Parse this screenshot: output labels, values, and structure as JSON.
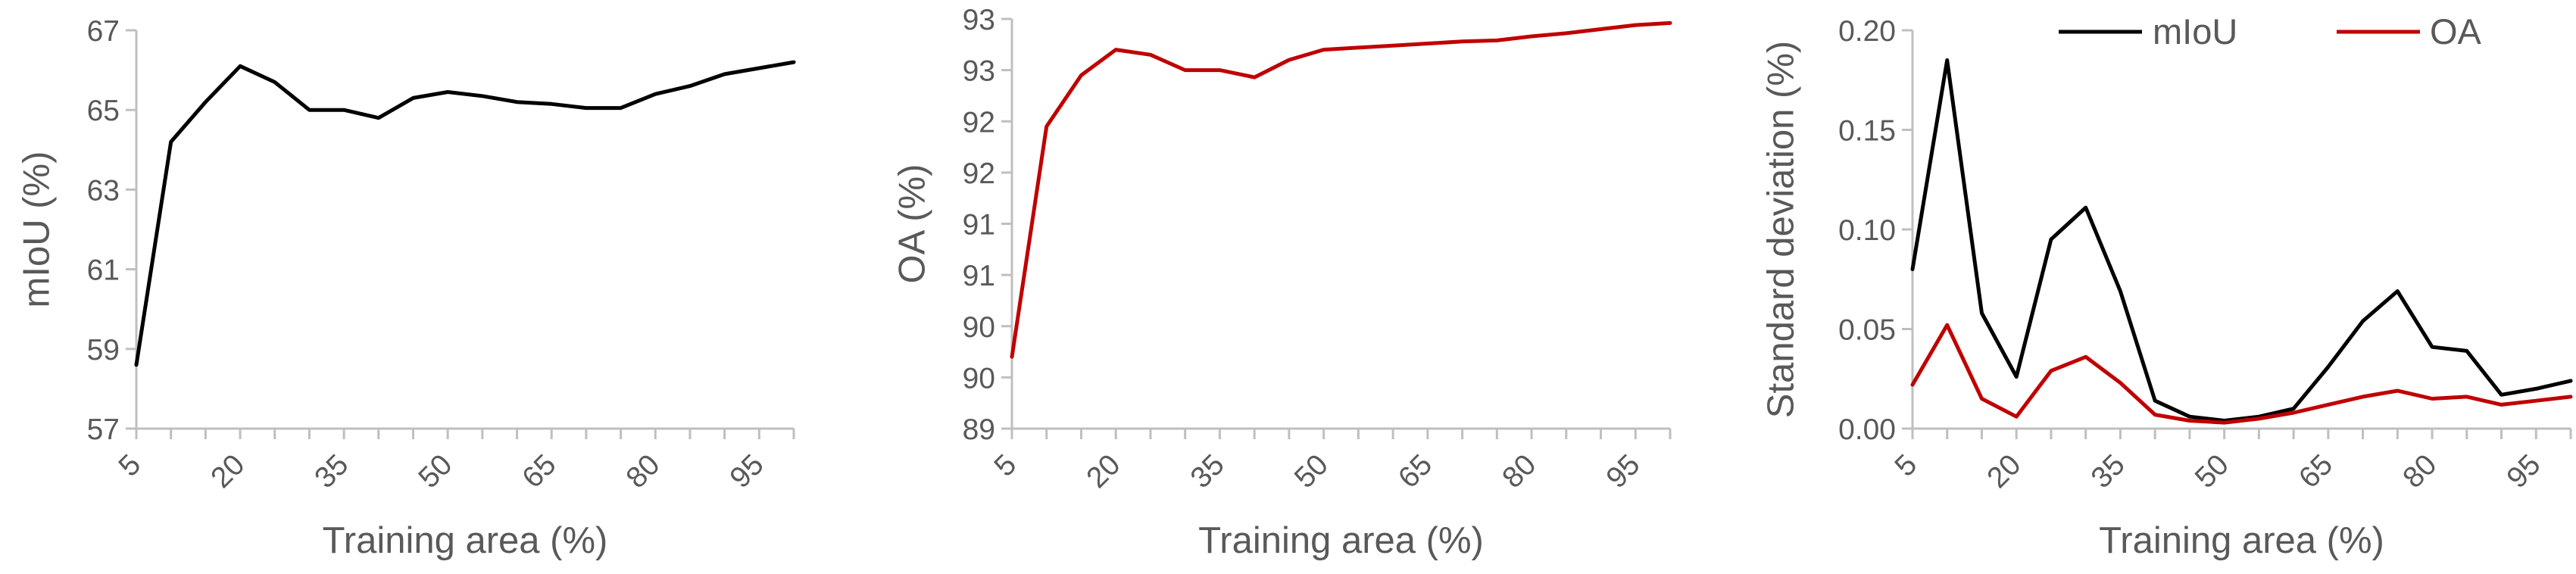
{
  "chart_data": [
    {
      "type": "line",
      "xlabel": "Training area (%)",
      "ylabel": "mIoU (%)",
      "xlim": [
        5,
        100
      ],
      "ylim": [
        57,
        67
      ],
      "xticks": [
        "5",
        "20",
        "35",
        "50",
        "65",
        "80",
        "95"
      ],
      "yticks": [
        "57",
        "59",
        "61",
        "63",
        "65",
        "67"
      ],
      "grid": false,
      "series": [
        {
          "color": "#000000",
          "x": [
            5,
            10,
            15,
            20,
            25,
            30,
            35,
            40,
            45,
            50,
            55,
            60,
            65,
            70,
            75,
            80,
            85,
            90,
            95,
            100
          ],
          "y": [
            58.6,
            64.2,
            65.2,
            66.1,
            65.7,
            65.0,
            65.0,
            64.8,
            65.3,
            65.45,
            65.35,
            65.2,
            65.15,
            65.05,
            65.05,
            65.4,
            65.6,
            65.9,
            66.05,
            66.2
          ]
        }
      ]
    },
    {
      "type": "line",
      "xlabel": "Training area  (%)",
      "ylabel": "OA (%)",
      "xlim": [
        5,
        100
      ],
      "ylim": [
        89,
        93
      ],
      "xticks": [
        "5",
        "20",
        "35",
        "50",
        "65",
        "80",
        "95"
      ],
      "yticks": [
        "89",
        "90",
        "90",
        "91",
        "91",
        "92",
        "92",
        "93",
        "93"
      ],
      "grid": false,
      "series": [
        {
          "color": "#c00000",
          "x": [
            5,
            10,
            15,
            20,
            25,
            30,
            35,
            40,
            45,
            50,
            55,
            60,
            65,
            70,
            75,
            80,
            85,
            90,
            95,
            100
          ],
          "y": [
            89.7,
            91.95,
            92.45,
            92.7,
            92.65,
            92.5,
            92.5,
            92.43,
            92.6,
            92.7,
            92.72,
            92.74,
            92.76,
            92.78,
            92.79,
            92.83,
            92.86,
            92.9,
            92.94,
            92.96
          ]
        }
      ]
    },
    {
      "type": "line",
      "xlabel": "Training area  (%)",
      "ylabel": "Standard deviation (%)",
      "xlim": [
        5,
        100
      ],
      "ylim": [
        0.0,
        0.2
      ],
      "xticks": [
        "5",
        "20",
        "35",
        "50",
        "65",
        "80",
        "95"
      ],
      "yticks": [
        "0.00",
        "0.05",
        "0.10",
        "0.15",
        "0.20"
      ],
      "grid": false,
      "legend": "top-right",
      "series": [
        {
          "name": "mIoU",
          "color": "#000000",
          "x": [
            5,
            10,
            15,
            20,
            25,
            30,
            35,
            40,
            45,
            50,
            55,
            60,
            65,
            70,
            75,
            80,
            85,
            90,
            95,
            100
          ],
          "y": [
            0.08,
            0.185,
            0.058,
            0.026,
            0.095,
            0.111,
            0.069,
            0.014,
            0.006,
            0.004,
            0.006,
            0.01,
            0.031,
            0.054,
            0.069,
            0.041,
            0.039,
            0.017,
            0.02,
            0.024
          ]
        },
        {
          "name": "OA",
          "color": "#c00000",
          "x": [
            5,
            10,
            15,
            20,
            25,
            30,
            35,
            40,
            45,
            50,
            55,
            60,
            65,
            70,
            75,
            80,
            85,
            90,
            95,
            100
          ],
          "y": [
            0.022,
            0.052,
            0.015,
            0.006,
            0.029,
            0.036,
            0.023,
            0.007,
            0.004,
            0.003,
            0.005,
            0.008,
            0.012,
            0.016,
            0.019,
            0.015,
            0.016,
            0.012,
            0.014,
            0.016
          ]
        }
      ]
    }
  ]
}
